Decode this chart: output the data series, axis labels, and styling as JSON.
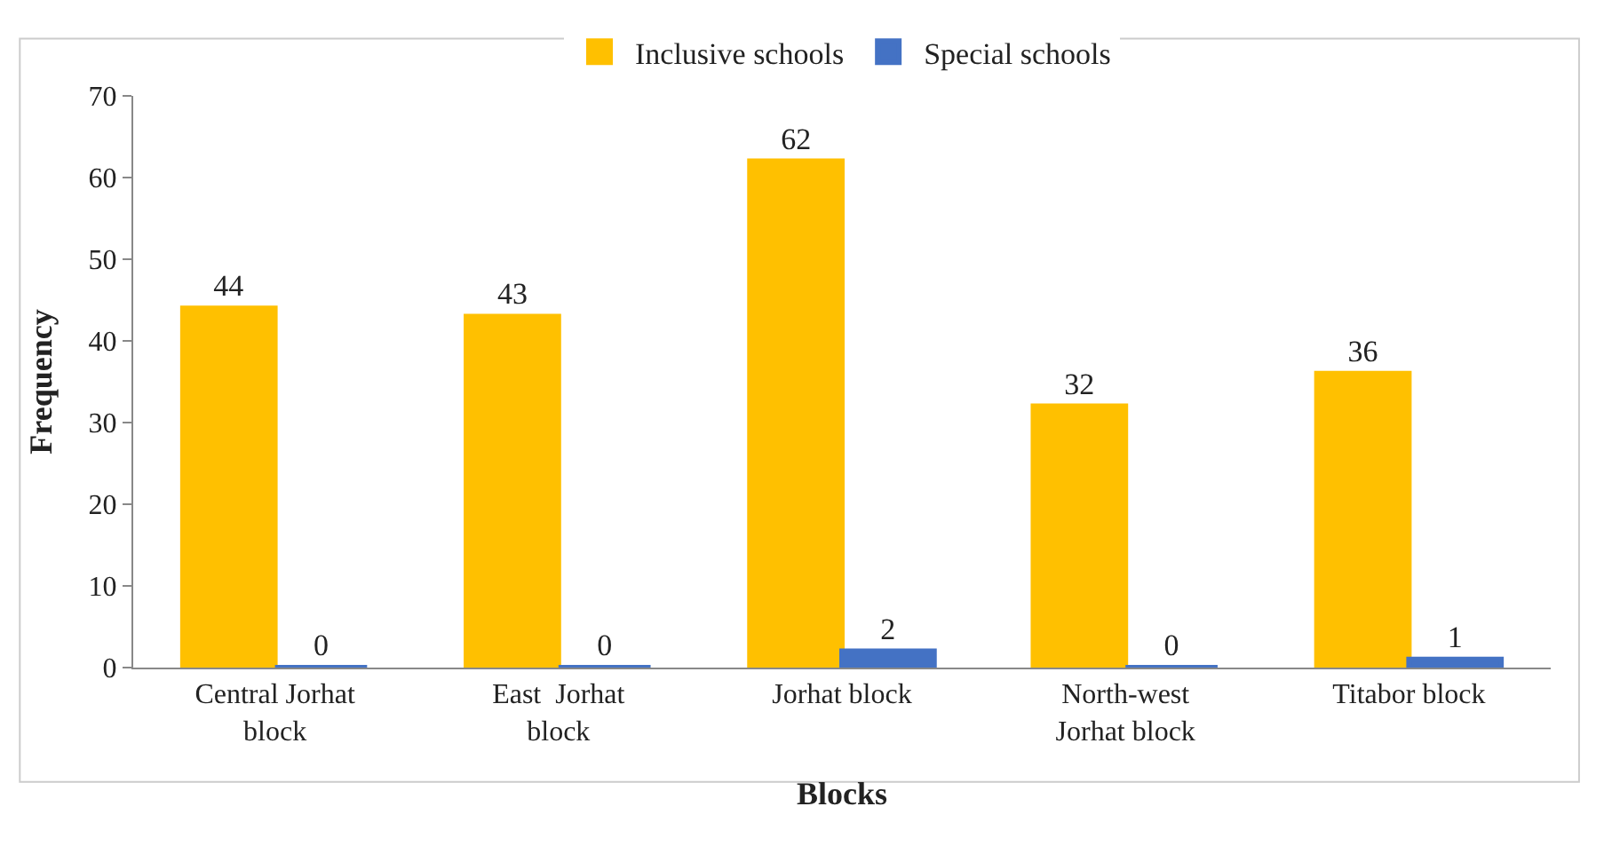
{
  "chart_data": {
    "type": "bar",
    "xlabel": "Blocks",
    "ylabel": "Frequency",
    "categories": [
      "Central Jorhat\nblock",
      "East  Jorhat\nblock",
      "Jorhat block",
      "North-west\nJorhat block",
      "Titabor block"
    ],
    "series": [
      {
        "name": "Inclusive schools",
        "color": "#ffc000",
        "values": [
          44,
          43,
          62,
          32,
          36
        ]
      },
      {
        "name": "Special schools",
        "color": "#4472c4",
        "values": [
          0,
          0,
          2,
          0,
          1
        ]
      }
    ],
    "ylim": [
      0,
      70
    ],
    "yticks": [
      0,
      10,
      20,
      30,
      40,
      50,
      60,
      70
    ],
    "grid": false,
    "legend": "top",
    "data_labels": true
  }
}
